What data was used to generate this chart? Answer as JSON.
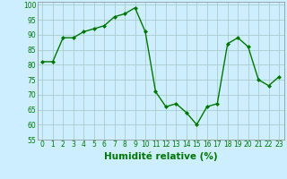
{
  "x": [
    0,
    1,
    2,
    3,
    4,
    5,
    6,
    7,
    8,
    9,
    10,
    11,
    12,
    13,
    14,
    15,
    16,
    17,
    18,
    19,
    20,
    21,
    22,
    23
  ],
  "y": [
    81,
    81,
    89,
    89,
    91,
    92,
    93,
    96,
    97,
    99,
    91,
    71,
    66,
    67,
    64,
    60,
    66,
    67,
    87,
    89,
    86,
    75,
    73,
    76
  ],
  "line_color": "#007700",
  "marker_color": "#007700",
  "bg_color": "#cceeff",
  "grid_color": "#aacccc",
  "xlabel": "Humidité relative (%)",
  "xlabel_color": "#007700",
  "ylim": [
    55,
    101
  ],
  "yticks": [
    55,
    60,
    65,
    70,
    75,
    80,
    85,
    90,
    95,
    100
  ],
  "xticks": [
    0,
    1,
    2,
    3,
    4,
    5,
    6,
    7,
    8,
    9,
    10,
    11,
    12,
    13,
    14,
    15,
    16,
    17,
    18,
    19,
    20,
    21,
    22,
    23
  ],
  "tick_fontsize": 5.5,
  "xlabel_fontsize": 7.5
}
